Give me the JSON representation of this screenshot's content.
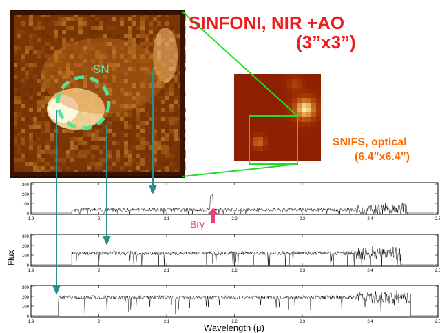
{
  "instrument_nir": {
    "name": "SINFONI, NIR +AO",
    "fov": "(3”x3”)",
    "color": "#ee1c1c"
  },
  "instrument_optical": {
    "name": "SNIFS, optical",
    "fov": "(6.4”x6.4”)",
    "color": "#ff6a00"
  },
  "sn_label": "SN",
  "sn_marker_color": "#4fe39b",
  "connector_color": "#22dd22",
  "pointer_arrow_color": "#2a8f8a",
  "brgamma": {
    "label": "Brγ",
    "color": "#e8407a",
    "wavelength": 2.166
  },
  "spectra": {
    "x_tick_labels": [
      "1.9",
      "2",
      "2.1",
      "2.2",
      "2.3",
      "2.4",
      "2.5"
    ],
    "y_tick_labels": [
      "300",
      "200",
      "100",
      "0"
    ],
    "y_axis_label": "Flux",
    "x_axis_label": "Wavelength (μ)",
    "panels": [
      {
        "start": 1.96,
        "end": 2.455,
        "base": 35,
        "amp": 38,
        "seed": 3
      },
      {
        "start": 1.96,
        "end": 2.445,
        "base": 120,
        "amp": 40,
        "seed": 11
      },
      {
        "start": 1.94,
        "end": 2.46,
        "base": 190,
        "amp": 40,
        "seed": 27
      }
    ]
  }
}
